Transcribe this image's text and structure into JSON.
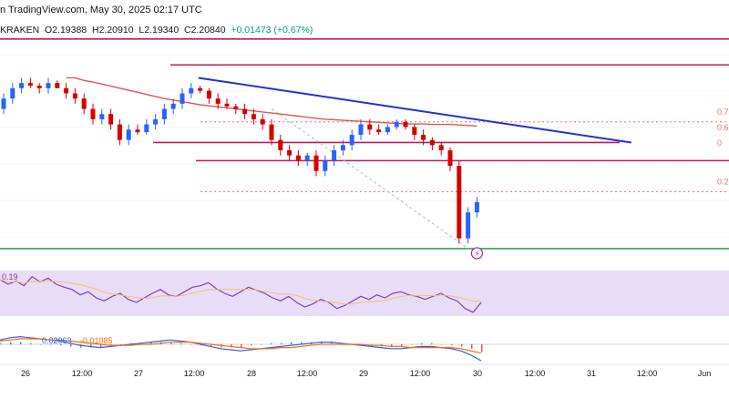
{
  "header": {
    "publisher_fragment": "n TradingView.com, May 30, 2025 02:17 UTC"
  },
  "ohlc": {
    "exchange": "KRAKEN",
    "open": "O2.19388",
    "high": "H2.20910",
    "low": "L2.19340",
    "close": "C2.20840",
    "change": "+0.01473 (+0.67%)"
  },
  "colors": {
    "up": "#089981",
    "down": "#f23645",
    "up_candle": "#2962ff",
    "down_candle": "#d50000",
    "resistance": "#c2185b",
    "trendline": "#2230d6",
    "ma": "#e05555",
    "fib": "#ef6e6e",
    "support": "#1b8a3e",
    "rsi_band": "#e9dcf7",
    "rsi_line": "#7e3fc4",
    "rsi_ma": "#f4c067",
    "macd_line": "#2962ff",
    "signal_line": "#ff6d00"
  },
  "chart_data": {
    "type": "candlestick",
    "x_ticks": [
      "26",
      "12:00",
      "27",
      "12:00",
      "28",
      "12:00",
      "29",
      "12:00",
      "30",
      "12:00",
      "31",
      "12:00",
      "Jun"
    ],
    "fib_labels": [
      "0.7",
      "0.6",
      "0",
      "0.2"
    ],
    "rsi": {
      "label": "0.19",
      "values": [
        68,
        62,
        66,
        60,
        72,
        65,
        70,
        62,
        58,
        55,
        48,
        52,
        44,
        40,
        46,
        50,
        42,
        38,
        44,
        50,
        55,
        48,
        46,
        52,
        58,
        60,
        64,
        56,
        50,
        46,
        52,
        58,
        54,
        50,
        44,
        40,
        46,
        38,
        32,
        36,
        42,
        38,
        30,
        34,
        40,
        46,
        42,
        48,
        44,
        50,
        52,
        48,
        46,
        42,
        46,
        50,
        44,
        40,
        30,
        25,
        38
      ]
    },
    "macd": {
      "label_1": "0.02063",
      "label_2": "0.01085",
      "macd": [
        0.004,
        0.006,
        0.007,
        0.006,
        0.005,
        0.004,
        0.003,
        0.001,
        -0.001,
        -0.002,
        -0.003,
        -0.002,
        -0.001,
        0.0,
        0.001,
        0.002,
        0.003,
        0.004,
        0.003,
        0.002,
        0.0,
        -0.002,
        -0.004,
        -0.005,
        -0.006,
        -0.005,
        -0.004,
        -0.003,
        -0.002,
        -0.001,
        0.0,
        0.001,
        0.002,
        0.002,
        0.001,
        0.0,
        -0.001,
        -0.002,
        -0.003,
        -0.004,
        -0.004,
        -0.003,
        -0.002,
        -0.002,
        -0.003,
        -0.004,
        -0.006,
        -0.01,
        -0.015
      ],
      "signal": [
        0.003,
        0.004,
        0.005,
        0.005,
        0.005,
        0.004,
        0.004,
        0.003,
        0.002,
        0.001,
        0.0,
        -0.001,
        -0.001,
        -0.001,
        0.0,
        0.0,
        0.001,
        0.002,
        0.002,
        0.002,
        0.001,
        0.0,
        -0.001,
        -0.002,
        -0.003,
        -0.004,
        -0.004,
        -0.004,
        -0.003,
        -0.003,
        -0.002,
        -0.001,
        0.0,
        0.0,
        0.0,
        0.0,
        0.0,
        -0.001,
        -0.001,
        -0.002,
        -0.002,
        -0.003,
        -0.003,
        -0.003,
        -0.003,
        -0.003,
        -0.004,
        -0.006,
        -0.008
      ]
    },
    "candles": [
      [
        2.3,
        2.33,
        2.29,
        2.32
      ],
      [
        2.32,
        2.35,
        2.31,
        2.34
      ],
      [
        2.34,
        2.36,
        2.33,
        2.35
      ],
      [
        2.35,
        2.36,
        2.34,
        2.345
      ],
      [
        2.345,
        2.35,
        2.33,
        2.34
      ],
      [
        2.34,
        2.36,
        2.33,
        2.35
      ],
      [
        2.35,
        2.355,
        2.34,
        2.34
      ],
      [
        2.34,
        2.35,
        2.32,
        2.33
      ],
      [
        2.33,
        2.34,
        2.31,
        2.32
      ],
      [
        2.32,
        2.33,
        2.29,
        2.3
      ],
      [
        2.3,
        2.31,
        2.27,
        2.28
      ],
      [
        2.28,
        2.3,
        2.27,
        2.29
      ],
      [
        2.29,
        2.3,
        2.26,
        2.27
      ],
      [
        2.27,
        2.28,
        2.23,
        2.24
      ],
      [
        2.24,
        2.27,
        2.23,
        2.26
      ],
      [
        2.26,
        2.27,
        2.25,
        2.255
      ],
      [
        2.255,
        2.28,
        2.25,
        2.27
      ],
      [
        2.27,
        2.29,
        2.26,
        2.28
      ],
      [
        2.28,
        2.31,
        2.27,
        2.3
      ],
      [
        2.3,
        2.32,
        2.29,
        2.31
      ],
      [
        2.31,
        2.34,
        2.3,
        2.33
      ],
      [
        2.33,
        2.35,
        2.32,
        2.34
      ],
      [
        2.34,
        2.345,
        2.33,
        2.335
      ],
      [
        2.335,
        2.34,
        2.31,
        2.32
      ],
      [
        2.32,
        2.33,
        2.3,
        2.31
      ],
      [
        2.31,
        2.32,
        2.3,
        2.305
      ],
      [
        2.305,
        2.31,
        2.29,
        2.3
      ],
      [
        2.3,
        2.31,
        2.28,
        2.29
      ],
      [
        2.29,
        2.3,
        2.27,
        2.28
      ],
      [
        2.28,
        2.29,
        2.26,
        2.27
      ],
      [
        2.27,
        2.28,
        2.23,
        2.24
      ],
      [
        2.24,
        2.25,
        2.21,
        2.22
      ],
      [
        2.22,
        2.23,
        2.2,
        2.21
      ],
      [
        2.21,
        2.22,
        2.19,
        2.2
      ],
      [
        2.2,
        2.215,
        2.19,
        2.21
      ],
      [
        2.21,
        2.22,
        2.17,
        2.18
      ],
      [
        2.18,
        2.21,
        2.17,
        2.2
      ],
      [
        2.2,
        2.23,
        2.19,
        2.22
      ],
      [
        2.22,
        2.24,
        2.21,
        2.23
      ],
      [
        2.23,
        2.26,
        2.22,
        2.25
      ],
      [
        2.25,
        2.28,
        2.24,
        2.27
      ],
      [
        2.27,
        2.28,
        2.25,
        2.26
      ],
      [
        2.26,
        2.27,
        2.25,
        2.255
      ],
      [
        2.255,
        2.27,
        2.25,
        2.265
      ],
      [
        2.265,
        2.28,
        2.26,
        2.275
      ],
      [
        2.275,
        2.28,
        2.26,
        2.265
      ],
      [
        2.265,
        2.27,
        2.24,
        2.25
      ],
      [
        2.25,
        2.26,
        2.23,
        2.24
      ],
      [
        2.24,
        2.245,
        2.22,
        2.23
      ],
      [
        2.23,
        2.235,
        2.21,
        2.22
      ],
      [
        2.22,
        2.225,
        2.18,
        2.19
      ],
      [
        2.19,
        2.2,
        2.04,
        2.05
      ],
      [
        2.05,
        2.11,
        2.04,
        2.1
      ],
      [
        2.1,
        2.13,
        2.09,
        2.12
      ]
    ],
    "moving_average": [
      2.36,
      2.36,
      2.355,
      2.352,
      2.348,
      2.344,
      2.34,
      2.336,
      2.332,
      2.328,
      2.324,
      2.32,
      2.317,
      2.314,
      2.311,
      2.308,
      2.306,
      2.304,
      2.302,
      2.3,
      2.298,
      2.296,
      2.294,
      2.292,
      2.29,
      2.288,
      2.286,
      2.284,
      2.282,
      2.28,
      2.279,
      2.278,
      2.277,
      2.276,
      2.275,
      2.274,
      2.273,
      2.272,
      2.271,
      2.271,
      2.271,
      2.27,
      2.27,
      2.27,
      2.269,
      2.268,
      2.267
    ],
    "levels": {
      "resistance_1": 2.435,
      "resistance_2": 2.385,
      "mid_resistance": 2.235,
      "lower_resistance": 2.2,
      "support": 2.03,
      "fib_07": 2.275,
      "fib_06": 2.245,
      "fib_02": 2.14
    },
    "trendline": [
      [
        21,
        2.36
      ],
      [
        56,
        2.235
      ]
    ]
  }
}
